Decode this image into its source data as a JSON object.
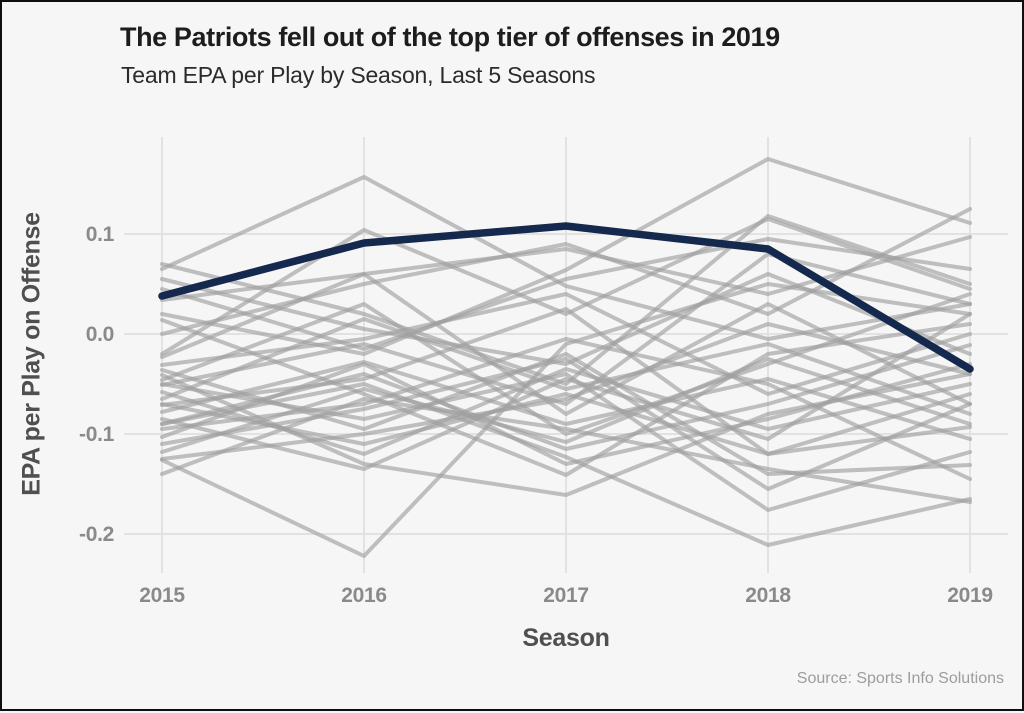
{
  "header": {
    "title": "The Patriots fell out of the top tier of offenses in 2019",
    "subtitle": "Team EPA per Play by Season, Last 5 Seasons"
  },
  "footer": {
    "source": "Source: Sports Info Solutions"
  },
  "chart_data": {
    "type": "line",
    "x": [
      2015,
      2016,
      2017,
      2018,
      2019
    ],
    "xtick_labels": [
      "2015",
      "2016",
      "2017",
      "2018",
      "2019"
    ],
    "ytick_values": [
      0.1,
      0.0,
      -0.1,
      -0.2
    ],
    "ytick_labels": [
      "0.1",
      "0.0",
      "-0.1",
      "-0.2"
    ],
    "xlabel": "Season",
    "ylabel": "EPA per Play on Offense",
    "ylim": [
      -0.24,
      0.2
    ],
    "grid": true,
    "legend_position": "none",
    "highlight_series": {
      "name": "Patriots",
      "color": "#14294d",
      "values": [
        0.038,
        0.091,
        0.108,
        0.085,
        -0.035
      ]
    },
    "background_color": "#a0a0a0",
    "background_series": [
      {
        "values": [
          0.065,
          0.157,
          0.048,
          -0.005,
          0.03
        ]
      },
      {
        "values": [
          -0.126,
          -0.222,
          -0.01,
          0.05,
          0.02
        ]
      },
      {
        "values": [
          0.02,
          -0.02,
          0.064,
          0.175,
          0.111
        ]
      },
      {
        "values": [
          -0.09,
          -0.05,
          -0.123,
          -0.211,
          -0.165
        ]
      },
      {
        "values": [
          -0.05,
          -0.085,
          -0.04,
          -0.176,
          -0.118
        ]
      },
      {
        "values": [
          -0.07,
          -0.11,
          -0.06,
          -0.12,
          -0.093
        ]
      },
      {
        "values": [
          0.0,
          0.05,
          0.09,
          0.02,
          0.125
        ]
      },
      {
        "values": [
          0.034,
          0.06,
          0.085,
          0.04,
          0.097
        ]
      },
      {
        "values": [
          -0.02,
          0.104,
          0.02,
          0.115,
          0.045
        ]
      },
      {
        "values": [
          0.07,
          0.02,
          -0.05,
          0.118,
          0.05
        ]
      },
      {
        "values": [
          0.014,
          -0.06,
          -0.141,
          -0.02,
          0.01
        ]
      },
      {
        "values": [
          -0.041,
          -0.13,
          -0.161,
          -0.08,
          -0.04
        ]
      },
      {
        "values": [
          0.055,
          0.005,
          -0.03,
          0.06,
          -0.02
        ]
      },
      {
        "values": [
          -0.023,
          0.06,
          -0.08,
          0.03,
          -0.07
        ]
      },
      {
        "values": [
          -0.031,
          -0.005,
          0.04,
          -0.06,
          0.0
        ]
      },
      {
        "values": [
          -0.036,
          -0.095,
          -0.02,
          -0.14,
          -0.131
        ]
      },
      {
        "values": [
          -0.046,
          0.03,
          -0.1,
          -0.03,
          0.04
        ]
      },
      {
        "values": [
          -0.051,
          -0.01,
          -0.07,
          0.08,
          0.03
        ]
      },
      {
        "values": [
          -0.058,
          -0.12,
          -0.035,
          -0.095,
          -0.05
        ]
      },
      {
        "values": [
          -0.065,
          0.015,
          -0.055,
          -0.01,
          -0.08
        ]
      },
      {
        "values": [
          -0.071,
          -0.045,
          0.025,
          -0.12,
          -0.06
        ]
      },
      {
        "values": [
          -0.078,
          -0.028,
          -0.09,
          -0.045,
          -0.105
        ]
      },
      {
        "values": [
          -0.085,
          -0.135,
          -0.045,
          -0.105,
          0.02
        ]
      },
      {
        "values": [
          -0.09,
          -0.04,
          -0.115,
          -0.07,
          -0.011
        ]
      },
      {
        "values": [
          -0.095,
          -0.07,
          -0.005,
          -0.05,
          -0.145
        ]
      },
      {
        "values": [
          -0.103,
          -0.03,
          -0.13,
          -0.085,
          -0.03
        ]
      },
      {
        "values": [
          -0.11,
          -0.075,
          -0.025,
          -0.155,
          -0.07
        ]
      },
      {
        "values": [
          -0.118,
          -0.055,
          -0.108,
          -0.025,
          -0.09
        ]
      },
      {
        "values": [
          -0.125,
          -0.1,
          -0.065,
          0.01,
          -0.04
        ]
      },
      {
        "values": [
          -0.14,
          -0.065,
          -0.095,
          -0.135,
          -0.168
        ]
      },
      {
        "values": [
          0.045,
          -0.015,
          0.055,
          0.095,
          0.065
        ]
      }
    ]
  },
  "style": {
    "background": "#f6f6f6",
    "gridline_color": "#e2e2e2",
    "highlight_color": "#14294d",
    "gray_line_color": "#a0a0a0"
  }
}
